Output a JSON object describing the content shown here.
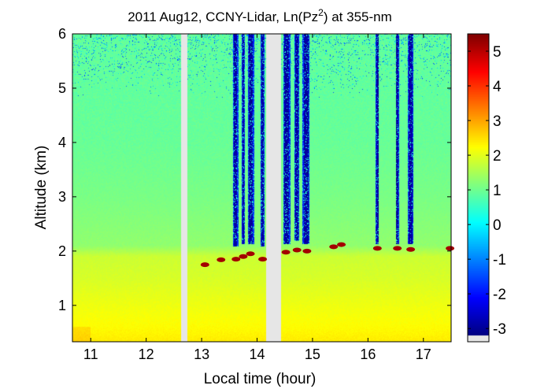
{
  "chart_data": {
    "type": "heatmap",
    "title": {
      "prefix": "2011 Aug12, CCNY-Lidar, Ln(Pz",
      "superscript": "2",
      "suffix": ") at 355-nm"
    },
    "xlabel": "Local time (hour)",
    "ylabel": "Altitude (km)",
    "xlim": [
      10.67,
      17.5
    ],
    "ylim": [
      0.33,
      6.0
    ],
    "x_ticks": [
      "11",
      "12",
      "13",
      "14",
      "15",
      "16",
      "17"
    ],
    "x_tick_values": [
      11,
      12,
      13,
      14,
      15,
      16,
      17
    ],
    "y_ticks": [
      "1",
      "2",
      "3",
      "4",
      "5",
      "6"
    ],
    "y_tick_values": [
      1,
      2,
      3,
      4,
      5,
      6
    ],
    "colorbar": {
      "colormap": "jet",
      "range": [
        -3.2,
        5.5
      ],
      "ticks": [
        "-3",
        "-2",
        "-1",
        "0",
        "1",
        "2",
        "3",
        "4",
        "5"
      ],
      "tick_values": [
        -3,
        -2,
        -1,
        0,
        1,
        2,
        3,
        4,
        5
      ],
      "no_data_color": "#e6e6e6"
    },
    "grid": false,
    "background_profile": {
      "altitudes_km": [
        0.33,
        0.6,
        1.0,
        1.5,
        1.9,
        2.1,
        3.0,
        4.0,
        5.0,
        6.0
      ],
      "values": [
        2.4,
        2.25,
        2.1,
        1.9,
        1.8,
        1.3,
        1.1,
        0.95,
        0.9,
        0.9
      ]
    },
    "boundary_layer_top_km": 1.95,
    "data_gaps_hour": [
      [
        12.63,
        12.75
      ],
      [
        14.17,
        14.43
      ]
    ],
    "cloud_columns": [
      {
        "start_hour": 13.56,
        "end_hour": 13.66,
        "base_km": 2.0
      },
      {
        "start_hour": 13.72,
        "end_hour": 13.78,
        "base_km": 2.05
      },
      {
        "start_hour": 13.83,
        "end_hour": 13.95,
        "base_km": 2.05
      },
      {
        "start_hour": 14.06,
        "end_hour": 14.13,
        "base_km": 2.0
      },
      {
        "start_hour": 14.47,
        "end_hour": 14.6,
        "base_km": 2.05
      },
      {
        "start_hour": 14.68,
        "end_hour": 14.76,
        "base_km": 2.1
      },
      {
        "start_hour": 14.82,
        "end_hour": 14.95,
        "base_km": 2.05
      },
      {
        "start_hour": 16.14,
        "end_hour": 16.2,
        "base_km": 2.05
      },
      {
        "start_hour": 16.5,
        "end_hour": 16.56,
        "base_km": 2.05
      },
      {
        "start_hour": 16.72,
        "end_hour": 16.82,
        "base_km": 2.05
      }
    ],
    "cloud_base_hits": [
      {
        "hour": 13.06,
        "km": 1.75
      },
      {
        "hour": 13.35,
        "km": 1.84
      },
      {
        "hour": 13.62,
        "km": 1.85
      },
      {
        "hour": 13.75,
        "km": 1.9
      },
      {
        "hour": 13.88,
        "km": 1.95
      },
      {
        "hour": 14.1,
        "km": 1.85
      },
      {
        "hour": 14.52,
        "km": 1.98
      },
      {
        "hour": 14.72,
        "km": 2.02
      },
      {
        "hour": 14.9,
        "km": 2.0
      },
      {
        "hour": 15.38,
        "km": 2.08
      },
      {
        "hour": 15.52,
        "km": 2.12
      },
      {
        "hour": 16.17,
        "km": 2.05
      },
      {
        "hour": 16.53,
        "km": 2.05
      },
      {
        "hour": 16.77,
        "km": 2.03
      },
      {
        "hour": 17.48,
        "km": 2.05
      }
    ]
  }
}
